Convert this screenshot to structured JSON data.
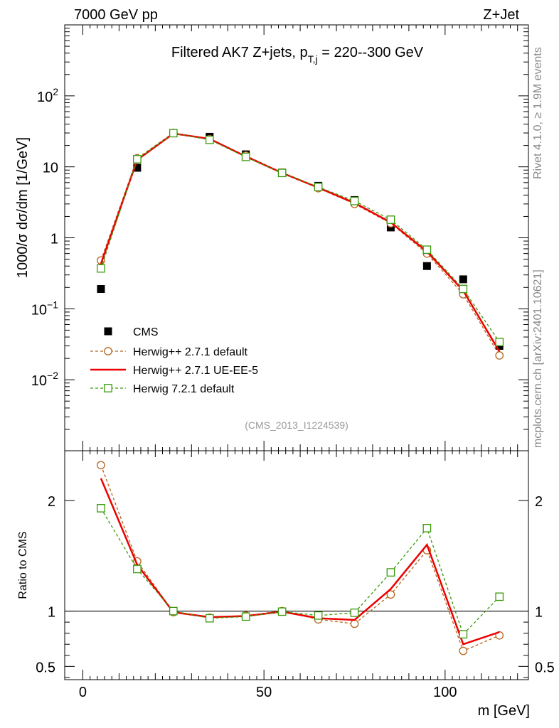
{
  "header": {
    "left": "7000 GeV pp",
    "right": "Z+Jet"
  },
  "side_labels": {
    "rivet": "Rivet 4.1.0, ≥ 1.9M events",
    "mcplots": "mcplots.cern.ch [arXiv:2401.10621]"
  },
  "colors": {
    "cms": "#000000",
    "herwigpp_default": "#b5651d",
    "herwigpp_ueee5": "#ee0000",
    "herwig7": "#3a9a0a",
    "ref_line": "#000000"
  },
  "chart_data": [
    {
      "type": "line",
      "title_main": "Filtered AK7 Z+jets, p",
      "title_sub": "T,j",
      "title_rest": " = 220--300 GeV",
      "ref_label": "(CMS_2013_I1224539)",
      "yscale": "log",
      "ylim": [
        0.001,
        1000
      ],
      "xlim": [
        -5,
        123
      ],
      "ylabel": "1000/σ  dσ/dm [1/GeV]",
      "ytick_labels": [
        "10^-2",
        "10^-1",
        "1",
        "10",
        "10^2"
      ],
      "legend_position": "bottom-left",
      "legend": [
        "CMS",
        "Herwig++ 2.7.1 default",
        "Herwig++ 2.7.1 UE-EE-5",
        "Herwig 7.2.1 default"
      ],
      "x": [
        5,
        15,
        25,
        35,
        45,
        55,
        65,
        75,
        85,
        95,
        105,
        115
      ],
      "series": [
        {
          "name": "CMS",
          "style": "data",
          "values": [
            0.19,
            9.7,
            30.0,
            26.5,
            15.0,
            8.3,
            5.4,
            3.4,
            1.4,
            0.4,
            0.26,
            0.03
          ]
        },
        {
          "name": "Herwig++ 2.7.1 default",
          "style": "circle-dashed",
          "values": [
            0.48,
            13.2,
            30.0,
            24.5,
            14.4,
            8.3,
            5.0,
            3.0,
            1.6,
            0.6,
            0.16,
            0.022
          ]
        },
        {
          "name": "Herwig++ 2.7.1 UE-EE-5",
          "style": "solid",
          "values": [
            0.43,
            12.5,
            29.5,
            24.8,
            14.0,
            8.2,
            5.1,
            3.1,
            1.65,
            0.64,
            0.18,
            0.025
          ]
        },
        {
          "name": "Herwig 7.2.1 default",
          "style": "square-dashed",
          "values": [
            0.37,
            12.8,
            29.8,
            24.0,
            13.8,
            8.2,
            5.2,
            3.3,
            1.8,
            0.68,
            0.19,
            0.034
          ]
        }
      ]
    },
    {
      "type": "line",
      "ylabel": "Ratio to CMS",
      "xlabel": "m [GeV]",
      "xlim": [
        -5,
        123
      ],
      "ylim": [
        0.38,
        2.45
      ],
      "yticks": [
        0.5,
        1,
        2
      ],
      "ytick_labels": [
        "0.5",
        "1",
        "2"
      ],
      "xticks": [
        0,
        50,
        100
      ],
      "xtick_labels": [
        "0",
        "50",
        "100"
      ],
      "reference_value": 1,
      "x": [
        5,
        15,
        25,
        35,
        45,
        55,
        65,
        75,
        85,
        95,
        105,
        115
      ],
      "series": [
        {
          "name": "Herwig++ 2.7.1 default",
          "style": "circle-dashed",
          "values": [
            2.32,
            1.45,
            0.99,
            0.94,
            0.96,
            1.0,
            0.925,
            0.885,
            1.15,
            1.55,
            0.64,
            0.78
          ]
        },
        {
          "name": "Herwig++ 2.7.1 UE-EE-5",
          "style": "solid",
          "values": [
            2.2,
            1.42,
            0.99,
            0.945,
            0.955,
            0.995,
            0.935,
            0.92,
            1.2,
            1.6,
            0.7,
            0.81
          ]
        },
        {
          "name": "Herwig 7.2.1 default",
          "style": "square-dashed",
          "values": [
            1.93,
            1.38,
            1.0,
            0.935,
            0.95,
            0.995,
            0.96,
            0.985,
            1.35,
            1.75,
            0.79,
            1.13
          ]
        }
      ]
    }
  ]
}
